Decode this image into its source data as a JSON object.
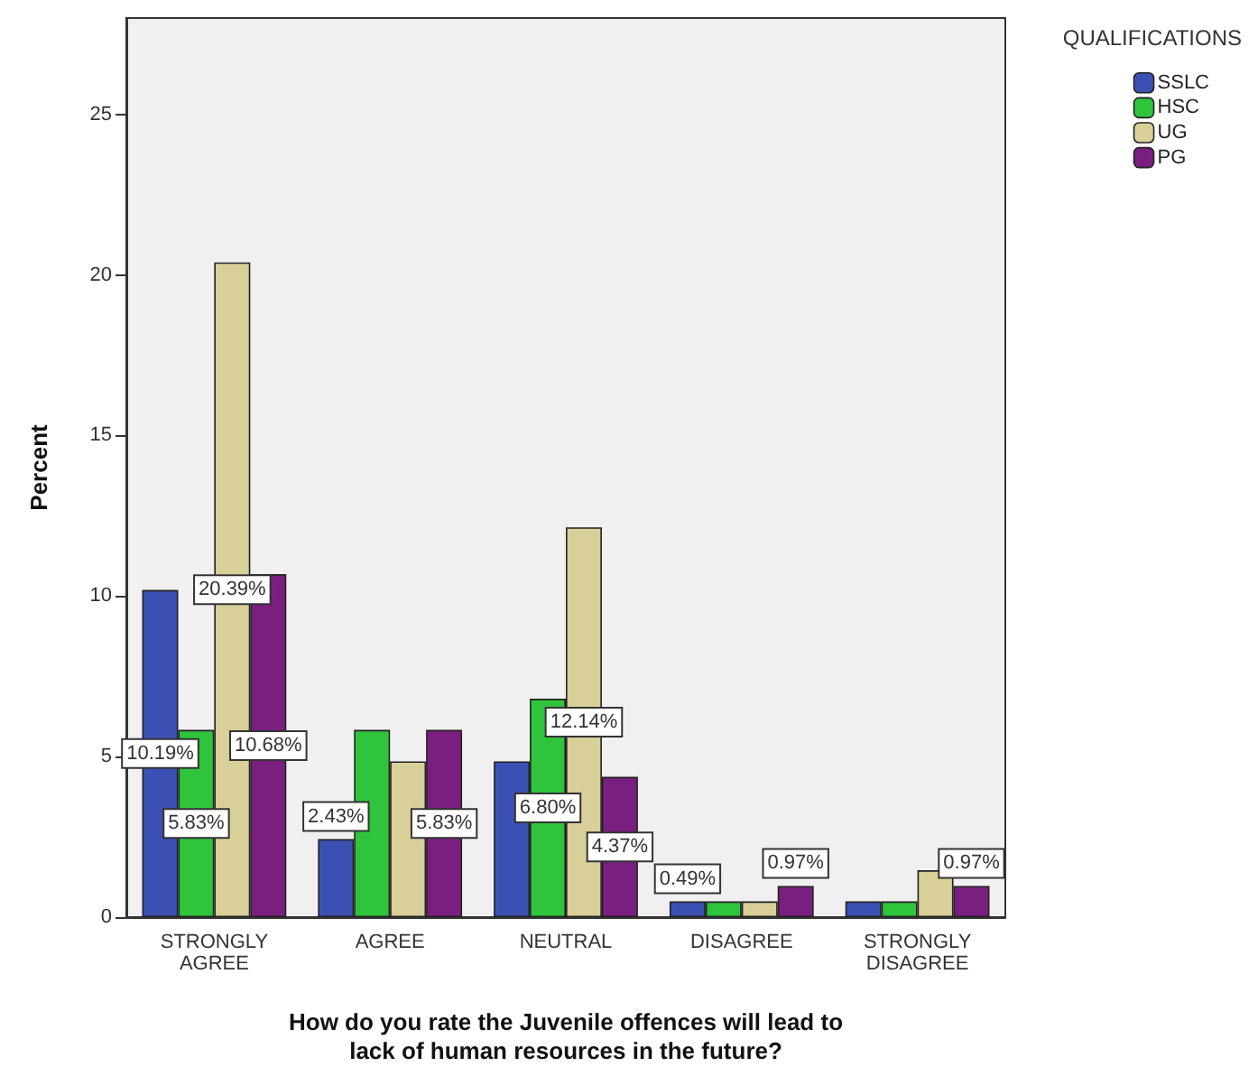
{
  "chart_data": {
    "type": "bar",
    "xlabel": "How do you rate the Juvenile offences will lead to\nlack of human resources in the future?",
    "ylabel": "Percent",
    "legend_title": "QUALIFICATIONS",
    "categories": [
      "STRONGLY\nAGREE",
      "AGREE",
      "NEUTRAL",
      "DISAGREE",
      "STRONGLY\nDISAGREE"
    ],
    "series": [
      {
        "name": "SSLC",
        "color": "#3c50b4",
        "values": [
          10.19,
          2.43,
          4.85,
          0.49,
          0.49
        ],
        "value_labels": [
          "10.19%",
          "2.43%",
          null,
          "0.49%",
          null
        ]
      },
      {
        "name": "HSC",
        "color": "#2fc43c",
        "values": [
          5.83,
          5.83,
          6.8,
          0.49,
          0.49
        ],
        "value_labels": [
          "5.83%",
          null,
          "6.80%",
          null,
          null
        ]
      },
      {
        "name": "UG",
        "color": "#d8d098",
        "values": [
          20.39,
          4.85,
          12.14,
          0.49,
          1.46
        ],
        "value_labels": [
          "20.39%",
          null,
          "12.14%",
          null,
          null
        ]
      },
      {
        "name": "PG",
        "color": "#7a1f80",
        "values": [
          10.68,
          5.83,
          4.37,
          0.97,
          0.97
        ],
        "value_labels": [
          "10.68%",
          "5.83%",
          "4.37%",
          "0.97%",
          "0.97%"
        ]
      }
    ],
    "ylim": [
      0,
      28
    ],
    "yticks": [
      0,
      5,
      10,
      15,
      20,
      25
    ],
    "grid": false,
    "legend": "top right"
  }
}
